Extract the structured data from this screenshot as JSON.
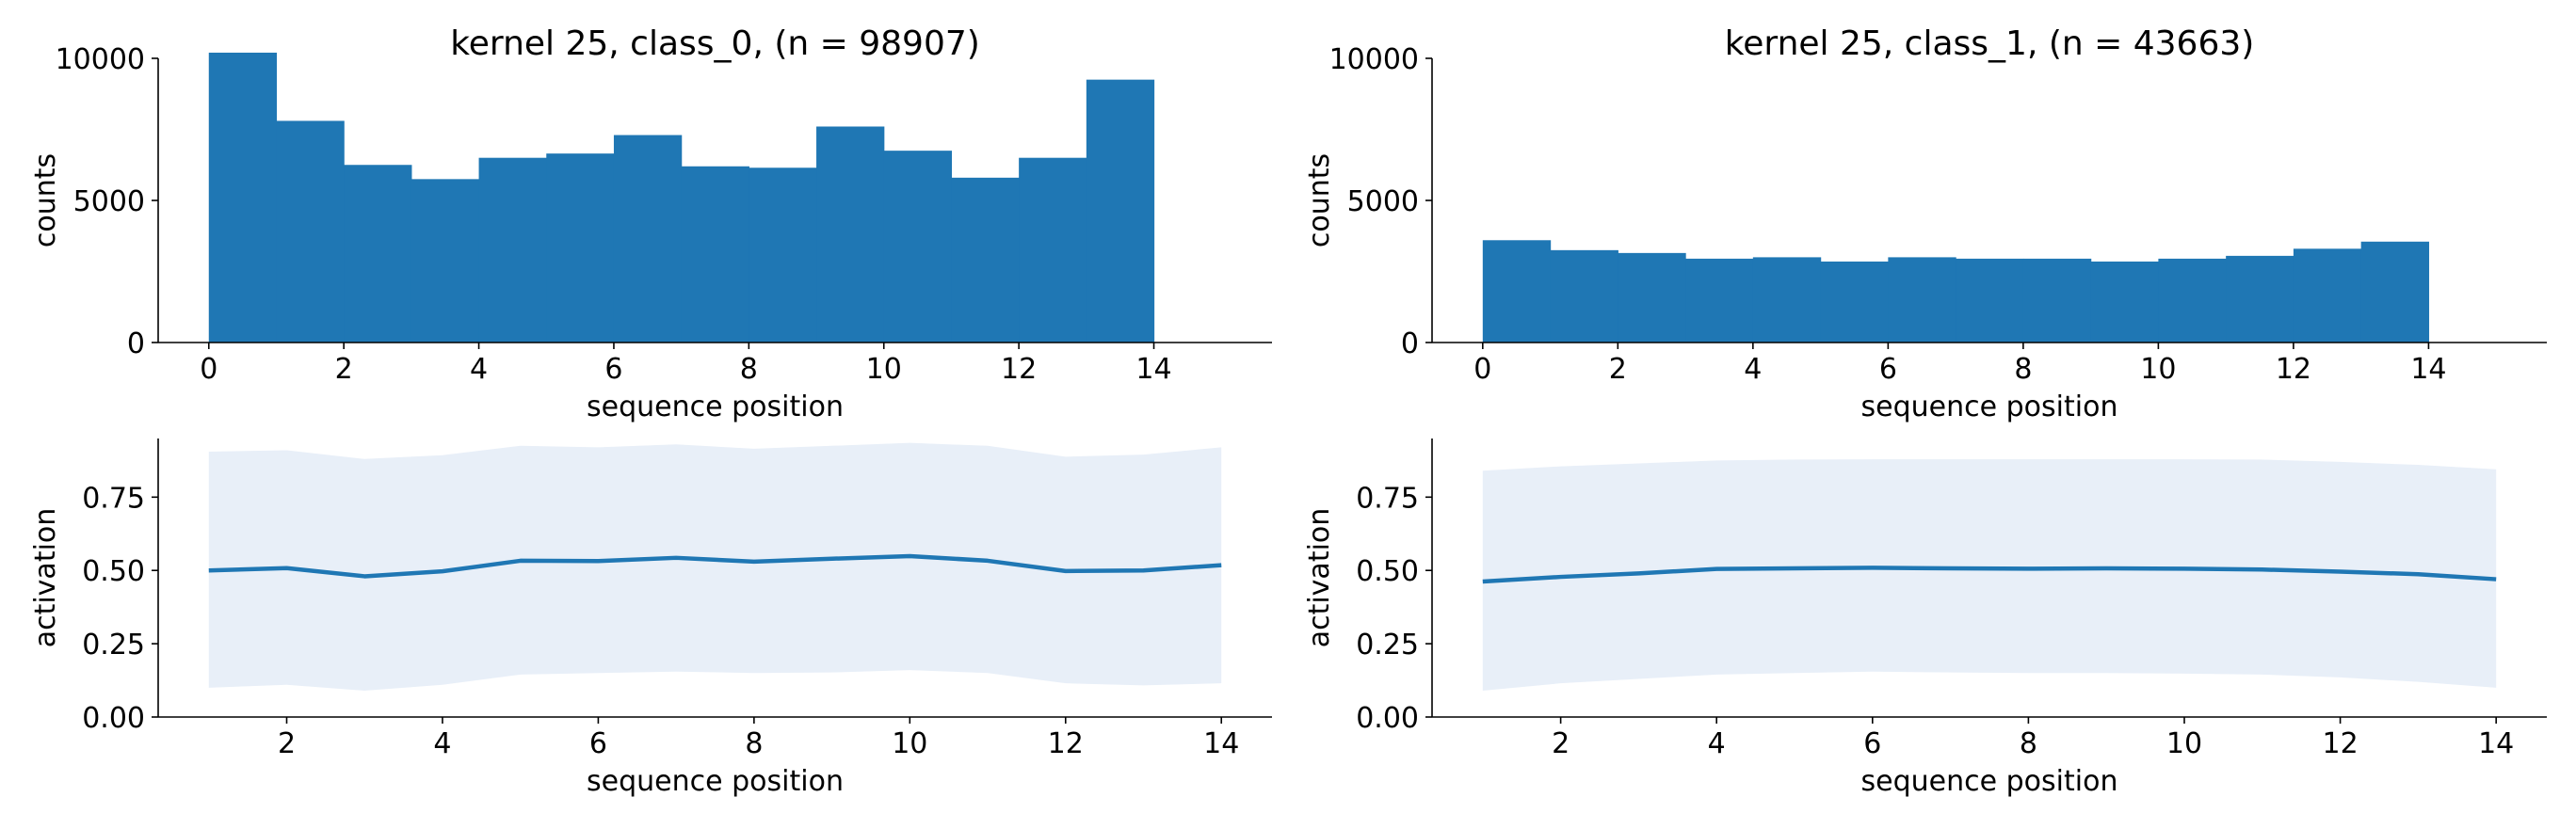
{
  "chart_data": [
    {
      "type": "bar",
      "title": "kernel 25, class_0, (n = 98907)",
      "xlabel": "sequence position",
      "ylabel": "counts",
      "xlim": [
        -0.75,
        15.75
      ],
      "ylim": [
        0,
        10000
      ],
      "xticks": [
        0,
        2,
        4,
        6,
        8,
        10,
        12,
        14
      ],
      "yticks": [
        0,
        5000,
        10000
      ],
      "bin_edges": [
        0,
        1,
        2,
        3,
        4,
        5,
        6,
        7,
        8,
        9,
        10,
        11,
        12,
        13,
        14
      ],
      "values": [
        10200,
        7800,
        6250,
        5750,
        6500,
        6650,
        7300,
        6200,
        6150,
        7600,
        6750,
        5800,
        6500,
        9250
      ],
      "color": "#1f77b4"
    },
    {
      "type": "bar",
      "title": "kernel 25, class_1, (n = 43663)",
      "xlabel": "sequence position",
      "ylabel": "counts",
      "xlim": [
        -0.75,
        15.75
      ],
      "ylim": [
        0,
        10000
      ],
      "xticks": [
        0,
        2,
        4,
        6,
        8,
        10,
        12,
        14
      ],
      "yticks": [
        0,
        5000,
        10000
      ],
      "bin_edges": [
        0,
        1,
        2,
        3,
        4,
        5,
        6,
        7,
        8,
        9,
        10,
        11,
        12,
        13,
        14
      ],
      "values": [
        3600,
        3250,
        3150,
        2950,
        3000,
        2850,
        3000,
        2950,
        2950,
        2850,
        2950,
        3050,
        3300,
        3550
      ],
      "color": "#1f77b4"
    },
    {
      "type": "line",
      "title": "",
      "xlabel": "sequence position",
      "ylabel": "activation",
      "xlim": [
        0.35,
        14.65
      ],
      "ylim": [
        0,
        0.95
      ],
      "xticks": [
        2,
        4,
        6,
        8,
        10,
        12,
        14
      ],
      "yticks": [
        0.0,
        0.25,
        0.5,
        0.75
      ],
      "ytick_labels": [
        "0.00",
        "0.25",
        "0.50",
        "0.75"
      ],
      "x": [
        1,
        2,
        3,
        4,
        5,
        6,
        7,
        8,
        9,
        10,
        11,
        12,
        13,
        14
      ],
      "mean": [
        0.5,
        0.508,
        0.48,
        0.497,
        0.533,
        0.532,
        0.543,
        0.53,
        0.54,
        0.549,
        0.533,
        0.498,
        0.5,
        0.518
      ],
      "upper": [
        0.905,
        0.91,
        0.88,
        0.893,
        0.925,
        0.92,
        0.93,
        0.915,
        0.925,
        0.935,
        0.925,
        0.888,
        0.895,
        0.92
      ],
      "lower": [
        0.1,
        0.11,
        0.09,
        0.11,
        0.145,
        0.15,
        0.155,
        0.15,
        0.152,
        0.16,
        0.15,
        0.115,
        0.108,
        0.115
      ],
      "line_color": "#1f77b4",
      "band_color": "#e8eff8"
    },
    {
      "type": "line",
      "title": "",
      "xlabel": "sequence position",
      "ylabel": "activation",
      "xlim": [
        0.35,
        14.65
      ],
      "ylim": [
        0,
        0.95
      ],
      "xticks": [
        2,
        4,
        6,
        8,
        10,
        12,
        14
      ],
      "yticks": [
        0.0,
        0.25,
        0.5,
        0.75
      ],
      "ytick_labels": [
        "0.00",
        "0.25",
        "0.50",
        "0.75"
      ],
      "x": [
        1,
        2,
        3,
        4,
        5,
        6,
        7,
        8,
        9,
        10,
        11,
        12,
        13,
        14
      ],
      "mean": [
        0.462,
        0.478,
        0.49,
        0.505,
        0.507,
        0.509,
        0.507,
        0.506,
        0.507,
        0.506,
        0.503,
        0.496,
        0.487,
        0.47
      ],
      "upper": [
        0.84,
        0.855,
        0.865,
        0.875,
        0.878,
        0.879,
        0.879,
        0.879,
        0.879,
        0.879,
        0.878,
        0.87,
        0.86,
        0.845
      ],
      "lower": [
        0.09,
        0.115,
        0.13,
        0.145,
        0.15,
        0.155,
        0.152,
        0.15,
        0.15,
        0.148,
        0.145,
        0.135,
        0.12,
        0.1
      ],
      "line_color": "#1f77b4",
      "band_color": "#e8eff8"
    }
  ]
}
